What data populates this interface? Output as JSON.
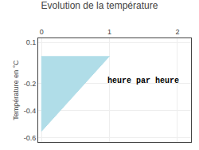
{
  "chart_data": {
    "type": "area",
    "title": "Evolution de la température",
    "ylabel": "Température en °C",
    "x": [
      0,
      0,
      1
    ],
    "values": [
      0,
      -0.55,
      0
    ],
    "color": "#b0dde8",
    "xlim": [
      -0.05,
      2.2
    ],
    "xticks": [
      0,
      1,
      2
    ],
    "ylim": [
      -0.63,
      0.13
    ],
    "yticks": [
      0.1,
      -0.2,
      -0.4,
      -0.6
    ],
    "grid": true,
    "annotations": [
      {
        "text": "heure par heure",
        "x": 1.5,
        "y": -0.18
      }
    ]
  }
}
